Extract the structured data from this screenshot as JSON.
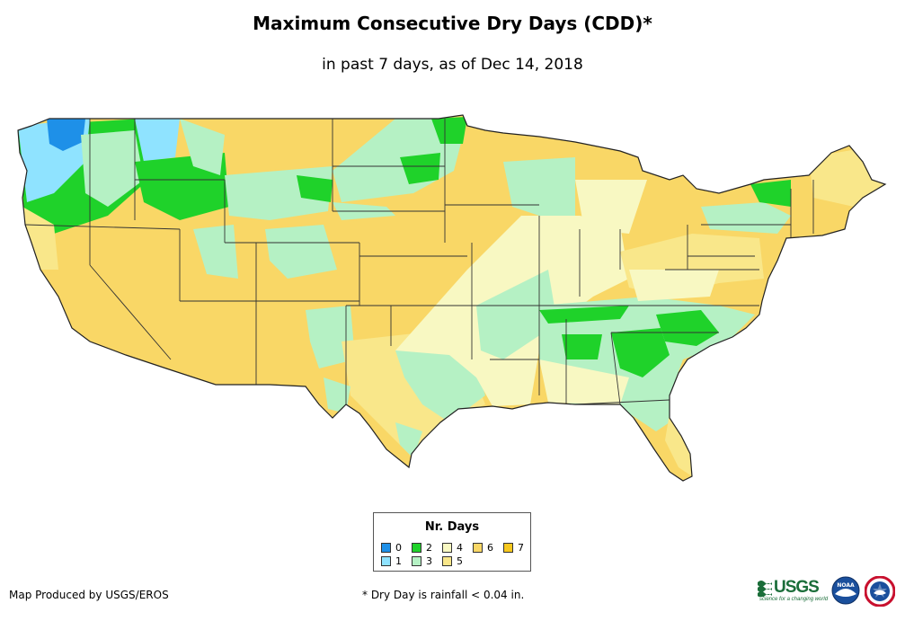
{
  "header": {
    "title": "Maximum Consecutive Dry Days (CDD)*",
    "subtitle": "in past 7 days, as of Dec 14, 2018"
  },
  "legend": {
    "title": "Nr. Days",
    "items": [
      {
        "label": "0",
        "color": "#1E90E8"
      },
      {
        "label": "1",
        "color": "#8FE3FF"
      },
      {
        "label": "2",
        "color": "#1FD22A"
      },
      {
        "label": "3",
        "color": "#B5F1C4"
      },
      {
        "label": "4",
        "color": "#F8F8C2"
      },
      {
        "label": "5",
        "color": "#F9E78A"
      },
      {
        "label": "6",
        "color": "#F9D766"
      },
      {
        "label": "7",
        "color": "#F7C81E"
      }
    ]
  },
  "footer": {
    "producer": "Map Produced by USGS/EROS",
    "note": "* Dry Day is rainfall < 0.04 in."
  },
  "logos": {
    "usgs_word": "USGS",
    "usgs_tagline": "science for a changing world",
    "noaa_word": "NOAA"
  },
  "map": {
    "region": "Contiguous United States",
    "colors": {
      "base": "#F9D766",
      "state_border": "#333333"
    }
  }
}
